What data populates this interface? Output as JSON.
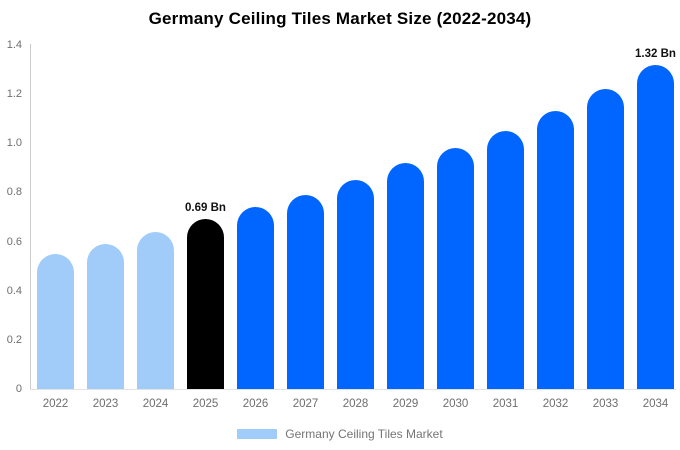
{
  "title": "Germany Ceiling Tiles Market Size (2022-2034)",
  "colors": {
    "light_blue": "#a1ccfa",
    "blue": "#0066ff",
    "highlight_black": "#000000",
    "y_axis_line": "#cccccc",
    "x_axis_line": "#e2e2e2",
    "tick_text": "#6e6e6e",
    "value_label_text": "#111111"
  },
  "legend": {
    "label": "Germany Ceiling Tiles Market",
    "swatch_color": "#a1ccfa"
  },
  "chart_data": {
    "type": "bar",
    "title": "Germany Ceiling Tiles Market Size (2022-2034)",
    "categories": [
      "2022",
      "2023",
      "2024",
      "2025",
      "2026",
      "2027",
      "2028",
      "2029",
      "2030",
      "2031",
      "2032",
      "2033",
      "2034"
    ],
    "series": [
      {
        "name": "Germany Ceiling Tiles Market",
        "values": [
          0.55,
          0.59,
          0.64,
          0.69,
          0.74,
          0.79,
          0.85,
          0.92,
          0.98,
          1.05,
          1.13,
          1.22,
          1.32
        ]
      }
    ],
    "unit": "Bn",
    "point_colors": [
      "#a1ccfa",
      "#a1ccfa",
      "#a1ccfa",
      "#000000",
      "#0066ff",
      "#0066ff",
      "#0066ff",
      "#0066ff",
      "#0066ff",
      "#0066ff",
      "#0066ff",
      "#0066ff",
      "#0066ff"
    ],
    "point_labels": [
      "",
      "",
      "",
      "0.69 Bn",
      "",
      "",
      "",
      "",
      "",
      "",
      "",
      "",
      "1.32 Bn"
    ],
    "xlabel": "",
    "ylabel": "",
    "ylim": [
      0,
      1.4
    ],
    "yticks": [
      0,
      0.2,
      0.4,
      0.6,
      0.8,
      1.0,
      1.2,
      1.4
    ],
    "ytick_labels": [
      "0",
      "0.2",
      "0.4",
      "0.6",
      "0.8",
      "1.0",
      "1.2",
      "1.4"
    ],
    "grid": false,
    "legend_position": "bottom"
  }
}
